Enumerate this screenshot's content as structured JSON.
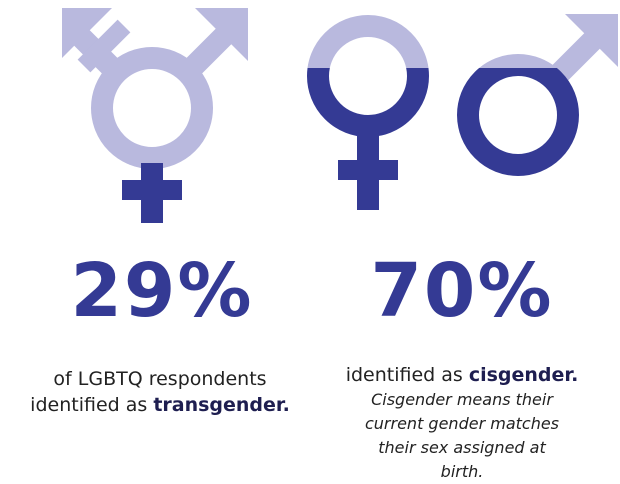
{
  "left": {
    "percent": "29%",
    "text": "of LGBTQ respondents identified as ",
    "emphasis": "transgender."
  },
  "right": {
    "percent": "70%",
    "text": "identified as ",
    "emphasis": "cisgender.",
    "note": "Cisgender means their current gender matches their sex assigned at birth."
  }
}
